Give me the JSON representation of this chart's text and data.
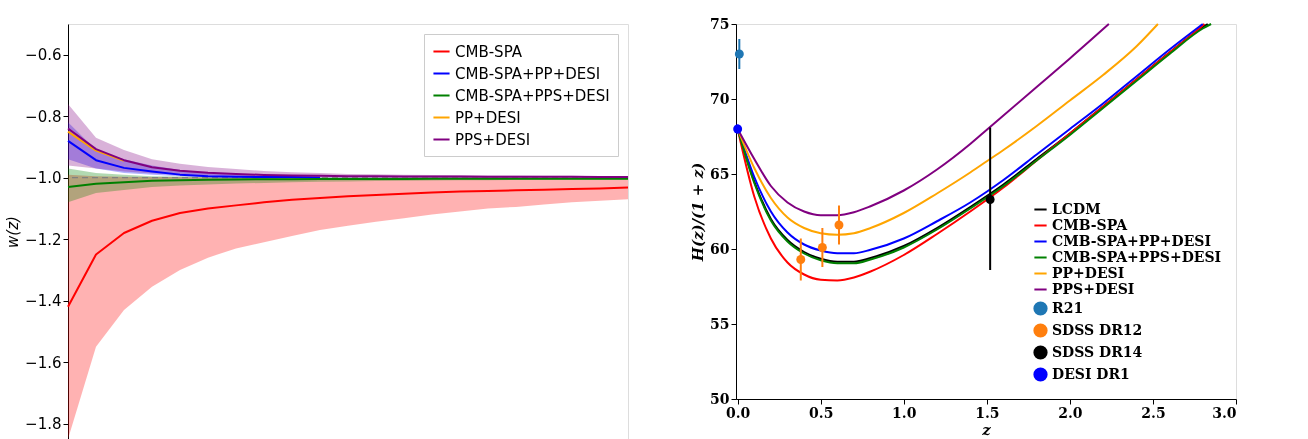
{
  "chart_data": [
    {
      "type": "line",
      "categories": [
        null,
        null,
        null,
        null,
        null,
        null,
        null,
        null,
        null,
        null,
        null,
        null,
        null,
        null,
        null,
        null,
        null,
        null,
        null,
        null,
        null
      ],
      "ylabel": "w(z)",
      "ylim": [
        -1.85,
        -0.5
      ],
      "yticks": [
        {
          "value": -0.6,
          "label": "−0.6"
        },
        {
          "value": -0.8,
          "label": "−0.8"
        },
        {
          "value": -1.0,
          "label": "−1.0"
        },
        {
          "value": -1.2,
          "label": "−1.2"
        },
        {
          "value": -1.4,
          "label": "−1.4"
        },
        {
          "value": -1.6,
          "label": "−1.6"
        },
        {
          "value": -1.8,
          "label": "−1.8"
        }
      ],
      "tick_labels": "y",
      "grid": false,
      "legend": "top right",
      "ref_lines": [
        {
          "axis": "y",
          "value": -1.0,
          "color": "#808080",
          "line_style": "dashed"
        }
      ],
      "series": [
        {
          "name": "CMB-SPA",
          "color": "#ff0000",
          "values": [
            -1.42,
            -1.25,
            -1.18,
            -1.14,
            -1.115,
            -1.1,
            -1.09,
            -1.08,
            -1.072,
            -1.066,
            -1.06,
            -1.056,
            -1.052,
            -1.048,
            -1.045,
            -1.043,
            -1.041,
            -1.039,
            -1.037,
            -1.035,
            -1.032
          ],
          "lower": [
            -1.85,
            -1.55,
            -1.43,
            -1.355,
            -1.3,
            -1.26,
            -1.23,
            -1.21,
            -1.19,
            -1.17,
            -1.156,
            -1.143,
            -1.132,
            -1.12,
            -1.11,
            -1.1,
            -1.095,
            -1.087,
            -1.08,
            -1.075,
            -1.07
          ],
          "upper": [
            -0.99,
            -0.995,
            -0.997,
            -0.998,
            -0.998,
            -0.999,
            -0.999,
            -0.999,
            -0.999,
            -1.0,
            -1.0,
            -1.0,
            -1.0,
            -1.0,
            -1.0,
            -1.0,
            -1.0,
            -1.0,
            -1.0,
            -1.0,
            -1.0
          ]
        },
        {
          "name": "CMB-SPA+PP+DESI",
          "color": "#0000ff",
          "values": [
            -0.88,
            -0.943,
            -0.968,
            -0.98,
            -0.99,
            -0.995,
            -0.997,
            -0.998,
            -0.998,
            -0.999,
            null,
            null,
            null,
            null,
            null,
            null,
            null,
            null,
            null,
            null,
            null
          ],
          "lower": [
            -0.94,
            -0.97,
            -0.985,
            -0.99,
            -0.995,
            -0.997,
            -0.998,
            -0.999,
            -0.999,
            -1.0,
            -1.0,
            -1.0,
            -1.0,
            -1.0,
            -1.0,
            -1.0,
            -1.0,
            -1.0,
            -1.0,
            -1.0,
            -1.0
          ],
          "upper": [
            -0.82,
            -0.91,
            -0.94,
            -0.96,
            -0.975,
            -0.985,
            -0.99,
            -0.993,
            -0.995,
            -0.996,
            -0.997,
            -0.997,
            -0.998,
            -0.998,
            -0.998,
            -0.998,
            -0.999,
            -0.999,
            -0.999,
            -0.999,
            -0.999
          ]
        },
        {
          "name": "CMB-SPA+PPS+DESI",
          "color": "#008000",
          "values": [
            -1.03,
            -1.02,
            -1.015,
            -1.01,
            -1.008,
            -1.007,
            -1.006,
            -1.005,
            -1.005,
            -1.004,
            -1.004,
            -1.004,
            -1.004,
            -1.003,
            -1.003,
            -1.003,
            -1.003,
            -1.003,
            -1.003,
            -1.003,
            -1.003
          ],
          "lower": [
            -1.08,
            -1.05,
            -1.04,
            -1.03,
            -1.025,
            -1.022,
            -1.019,
            -1.017,
            -1.015,
            -1.013,
            -1.012,
            -1.011,
            -1.01,
            -1.009,
            -1.008,
            -1.008,
            -1.007,
            -1.007,
            -1.006,
            -1.006,
            -1.006
          ],
          "upper": [
            -0.97,
            -0.985,
            -0.99,
            -0.995,
            -0.996,
            -0.997,
            -0.998,
            -0.998,
            -0.999,
            -0.999,
            -0.999,
            -0.999,
            -0.999,
            -0.999,
            -0.999,
            -0.999,
            -0.999,
            -0.999,
            -0.999,
            -0.999,
            -0.999
          ]
        },
        {
          "name": "PP+DESI",
          "color": "#ffa500",
          "values": [
            -0.85,
            -0.912,
            -0.945,
            null,
            null,
            null,
            null,
            null,
            null,
            null,
            null,
            null,
            null,
            null,
            null,
            null,
            null,
            null,
            null,
            null,
            null
          ]
        },
        {
          "name": "PPS+DESI",
          "color": "#800080",
          "values": [
            -0.84,
            -0.907,
            -0.943,
            -0.966,
            -0.977,
            -0.984,
            -0.988,
            -0.991,
            -0.993,
            -0.994,
            -0.995,
            -0.995,
            -0.996,
            -0.996,
            -0.996,
            -0.997,
            -0.997,
            -0.997,
            -0.997,
            -0.998,
            -0.998
          ],
          "lower": [
            -0.96,
            -0.97,
            -0.98,
            -0.986,
            -0.99,
            -0.993,
            -0.995,
            -0.996,
            -0.997,
            -0.998,
            -0.998,
            -0.998,
            -0.999,
            -0.999,
            -0.999,
            -0.999,
            -0.999,
            -0.999,
            -0.999,
            -0.999,
            -0.999
          ],
          "upper": [
            -0.76,
            -0.87,
            -0.91,
            -0.94,
            -0.955,
            -0.965,
            -0.972,
            -0.978,
            -0.982,
            -0.985,
            -0.988,
            -0.989,
            -0.99,
            -0.991,
            -0.992,
            -0.993,
            -0.993,
            -0.994,
            -0.994,
            -0.995,
            -0.995
          ]
        }
      ]
    },
    {
      "type": "line",
      "xlabel": "z",
      "ylabel": "H(z)/(1 + z)",
      "xlim": [
        -0.01,
        3.0
      ],
      "ylim": [
        50,
        75
      ],
      "xticks": [
        {
          "value": 0,
          "label": "0.0"
        },
        {
          "value": 0.5,
          "label": "0.5"
        },
        {
          "value": 1,
          "label": "1.0"
        },
        {
          "value": 1.5,
          "label": "1.5"
        },
        {
          "value": 2,
          "label": "2.0"
        },
        {
          "value": 2.5,
          "label": "2.5"
        },
        {
          "value": 3,
          "label": "3.0"
        }
      ],
      "yticks": [
        50,
        55,
        60,
        65,
        70,
        75
      ],
      "grid": false,
      "legend": "bottom right",
      "series": [
        {
          "name": "LCDM",
          "color": "#000000",
          "x": [
            0,
            0.1,
            0.2,
            0.3,
            0.4,
            0.5,
            0.6,
            0.7,
            0.8,
            1.0,
            1.2,
            1.4,
            1.6,
            1.8,
            2.0,
            2.2,
            2.4,
            2.6,
            2.8,
            2.83
          ],
          "values": [
            68.0,
            64.5,
            62.0,
            60.6,
            59.8,
            59.35,
            59.15,
            59.15,
            59.4,
            60.2,
            61.4,
            62.8,
            64.3,
            66.0,
            67.7,
            69.5,
            71.3,
            73.1,
            74.8,
            75.0
          ]
        },
        {
          "name": "CMB-SPA",
          "color": "#ff0000",
          "x": [
            0,
            0.1,
            0.2,
            0.3,
            0.4,
            0.5,
            0.6,
            0.7,
            0.8,
            1.0,
            1.2,
            1.4,
            1.6,
            1.8,
            2.0,
            2.2,
            2.4,
            2.6,
            2.8,
            2.81
          ],
          "values": [
            68.0,
            63.5,
            60.7,
            59.1,
            58.3,
            57.95,
            57.9,
            58.1,
            58.5,
            59.6,
            61.0,
            62.5,
            64.1,
            65.9,
            67.7,
            69.5,
            71.3,
            73.1,
            74.9,
            75.0
          ]
        },
        {
          "name": "CMB-SPA+PP+DESI",
          "color": "#0000ff",
          "x": [
            0,
            0.1,
            0.2,
            0.3,
            0.4,
            0.5,
            0.6,
            0.7,
            0.8,
            1.0,
            1.2,
            1.4,
            1.6,
            1.8,
            2.0,
            2.2,
            2.4,
            2.6,
            2.8
          ],
          "values": [
            68.0,
            64.8,
            62.5,
            61.1,
            60.3,
            59.9,
            59.72,
            59.72,
            59.95,
            60.7,
            61.85,
            63.1,
            64.6,
            66.3,
            68.0,
            69.7,
            71.5,
            73.3,
            75.0
          ]
        },
        {
          "name": "CMB-SPA+PPS+DESI",
          "color": "#008000",
          "x": [
            0,
            0.1,
            0.2,
            0.3,
            0.4,
            0.5,
            0.6,
            0.7,
            0.8,
            1.0,
            1.2,
            1.4,
            1.6,
            1.8,
            2.0,
            2.2,
            2.4,
            2.6,
            2.8,
            2.85
          ],
          "values": [
            68.0,
            64.4,
            61.9,
            60.5,
            59.7,
            59.25,
            59.05,
            59.05,
            59.3,
            60.1,
            61.3,
            62.7,
            64.2,
            65.9,
            67.6,
            69.4,
            71.2,
            73.0,
            74.7,
            75.0
          ]
        },
        {
          "name": "PP+DESI",
          "color": "#ffa500",
          "x": [
            0,
            0.1,
            0.2,
            0.3,
            0.4,
            0.5,
            0.6,
            0.7,
            0.8,
            1.0,
            1.2,
            1.4,
            1.5,
            1.6,
            1.8,
            2.0,
            2.2,
            2.4,
            2.53
          ],
          "values": [
            68.0,
            65.4,
            63.4,
            62.1,
            61.4,
            61.05,
            60.95,
            61.05,
            61.4,
            62.4,
            63.7,
            65.1,
            65.85,
            66.6,
            68.2,
            69.9,
            71.6,
            73.5,
            75.0
          ]
        },
        {
          "name": "PPS+DESI",
          "color": "#800080",
          "x": [
            0,
            0.1,
            0.2,
            0.3,
            0.4,
            0.5,
            0.6,
            0.7,
            0.8,
            1.0,
            1.2,
            1.4,
            1.5,
            1.6,
            1.8,
            2.0,
            2.235
          ],
          "values": [
            68.0,
            66.0,
            64.2,
            63.1,
            62.5,
            62.25,
            62.25,
            62.45,
            62.85,
            63.9,
            65.3,
            67.0,
            67.95,
            68.9,
            70.8,
            72.7,
            75.0
          ]
        },
        {
          "name": "R21",
          "type": "scatter",
          "marker": "circle",
          "color": "#1f77b4",
          "x": [
            0.01
          ],
          "values": [
            73.0
          ],
          "errors": [
            1.0
          ]
        },
        {
          "name": "SDSS DR12",
          "type": "scatter",
          "marker": "circle",
          "color": "#ff7f0e",
          "x": [
            0.38,
            0.51,
            0.61
          ],
          "values": [
            59.3,
            60.1,
            61.6
          ],
          "errors": [
            1.4,
            1.3,
            1.3
          ]
        },
        {
          "name": "SDSS DR14",
          "type": "scatter",
          "marker": "circle",
          "color": "#000000",
          "x": [
            1.52
          ],
          "values": [
            63.3
          ],
          "errors": [
            [
              58.6,
              68.1
            ]
          ]
        },
        {
          "name": "DESI DR1",
          "type": "scatter",
          "marker": "circle",
          "color": "#0000ff",
          "x": [
            0.0
          ],
          "values": [
            68.0
          ],
          "errors": [
            0.3
          ]
        }
      ]
    }
  ]
}
